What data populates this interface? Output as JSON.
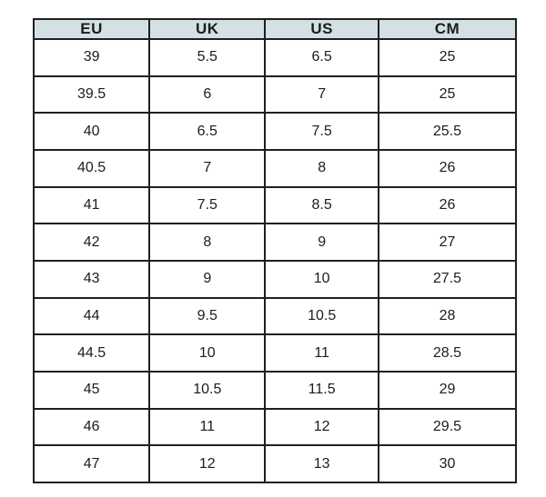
{
  "table": {
    "columns": [
      "EU",
      "UK",
      "US",
      "CM"
    ],
    "rows": [
      [
        "39",
        "5.5",
        "6.5",
        "25"
      ],
      [
        "39.5",
        "6",
        "7",
        "25"
      ],
      [
        "40",
        "6.5",
        "7.5",
        "25.5"
      ],
      [
        "40.5",
        "7",
        "8",
        "26"
      ],
      [
        "41",
        "7.5",
        "8.5",
        "26"
      ],
      [
        "42",
        "8",
        "9",
        "27"
      ],
      [
        "43",
        "9",
        "10",
        "27.5"
      ],
      [
        "44",
        "9.5",
        "10.5",
        "28"
      ],
      [
        "44.5",
        "10",
        "11",
        "28.5"
      ],
      [
        "45",
        "10.5",
        "11.5",
        "29"
      ],
      [
        "46",
        "11",
        "12",
        "29.5"
      ],
      [
        "47",
        "12",
        "13",
        "30"
      ]
    ]
  },
  "colors": {
    "header_bg": "#d3e0e4",
    "border": "#1f1f1f",
    "text": "#1c1c1c",
    "page_bg": "#ffffff"
  },
  "chart_data": {
    "type": "table",
    "columns": [
      "EU",
      "UK",
      "US",
      "CM"
    ],
    "rows": [
      [
        39,
        5.5,
        6.5,
        25
      ],
      [
        39.5,
        6,
        7,
        25
      ],
      [
        40,
        6.5,
        7.5,
        25.5
      ],
      [
        40.5,
        7,
        8,
        26
      ],
      [
        41,
        7.5,
        8.5,
        26
      ],
      [
        42,
        8,
        9,
        27
      ],
      [
        43,
        9,
        10,
        27.5
      ],
      [
        44,
        9.5,
        10.5,
        28
      ],
      [
        44.5,
        10,
        11,
        28.5
      ],
      [
        45,
        10.5,
        11.5,
        29
      ],
      [
        46,
        11,
        12,
        29.5
      ],
      [
        47,
        12,
        13,
        30
      ]
    ]
  }
}
